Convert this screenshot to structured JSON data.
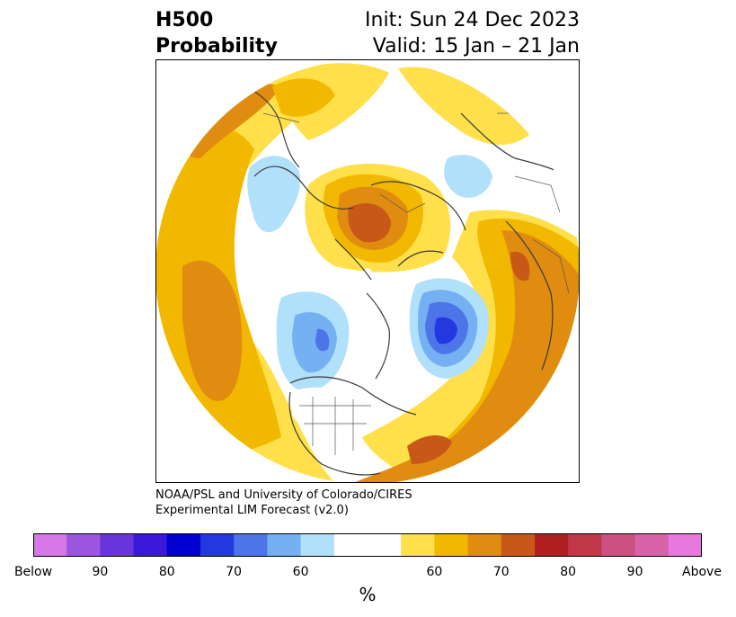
{
  "title": {
    "line1_left": "H500",
    "line2_left": "Probability",
    "line1_right": "Init: Sun 24 Dec 2023",
    "line2_right": "Valid: 15 Jan – 21 Jan"
  },
  "credit": {
    "line1": "NOAA/PSL and University of Colorado/CIRES",
    "line2": "Experimental LIM Forecast (v2.0)"
  },
  "colorbar": {
    "unit": "%",
    "below_colors": [
      "#d678e8",
      "#9b55e0",
      "#6a34dc",
      "#3a1ad8",
      "#0000d0",
      "#2438e0",
      "#4d74e8",
      "#74b0f2",
      "#b0e0fa"
    ],
    "neutral_color": "#ffffff",
    "above_colors": [
      "#ffe04a",
      "#f2b800",
      "#e08c10",
      "#c85818",
      "#b02020",
      "#c03848",
      "#cc5080",
      "#d862a8",
      "#e878e0"
    ],
    "tick_labels": [
      "Below",
      "90",
      "80",
      "70",
      "60",
      "60",
      "70",
      "80",
      "90",
      "Above"
    ]
  }
}
